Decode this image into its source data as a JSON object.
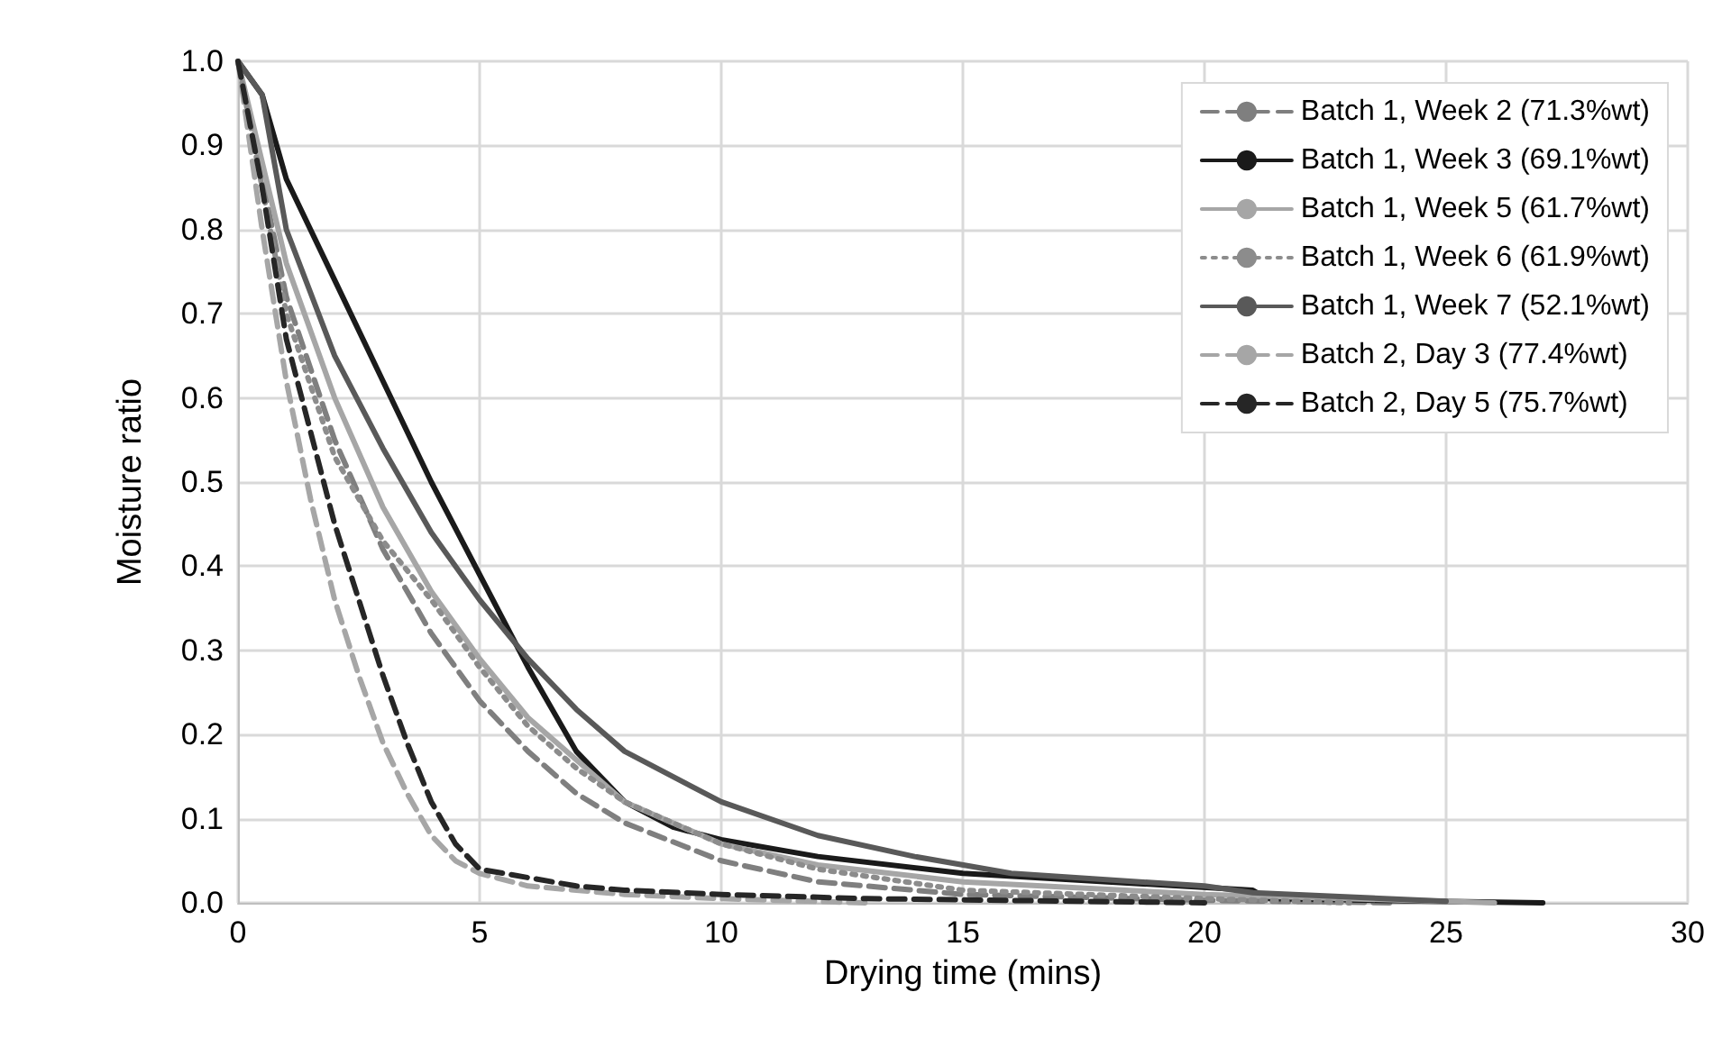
{
  "chart_data": {
    "type": "line",
    "xlabel": "Drying time (mins)",
    "ylabel": "Moisture ratio",
    "xlim": [
      0,
      30
    ],
    "xticks": [
      0,
      5,
      10,
      15,
      20,
      25,
      30
    ],
    "ylim": [
      0,
      1
    ],
    "yticks": [
      {
        "value": 0,
        "label": "0.0"
      },
      0.1,
      0.2,
      0.3,
      0.4,
      0.5,
      0.6,
      0.7,
      0.8,
      0.9,
      {
        "value": 1,
        "label": "1.0"
      }
    ],
    "grid": true,
    "legend": "top right",
    "marker": "none",
    "series": [
      {
        "name": "Batch 1, Week 2 (71.3%wt)",
        "color": "#7f7f7f",
        "line_style": "dashed",
        "x": [
          0,
          1,
          2,
          3,
          4,
          5,
          6,
          7,
          8,
          10,
          12,
          15,
          20,
          24
        ],
        "values": [
          1,
          0.72,
          0.55,
          0.42,
          0.32,
          0.24,
          0.18,
          0.13,
          0.095,
          0.05,
          0.025,
          0.01,
          0.003,
          0
        ]
      },
      {
        "name": "Batch 1, Week 3 (69.1%wt)",
        "color": "#1a1a1a",
        "line_style": "solid",
        "x": [
          0,
          0.5,
          1,
          2,
          3,
          4,
          5,
          6,
          7,
          8,
          9,
          10,
          12,
          15,
          18,
          21,
          21.3,
          27
        ],
        "values": [
          1,
          0.96,
          0.86,
          0.74,
          0.62,
          0.5,
          0.39,
          0.28,
          0.18,
          0.12,
          0.09,
          0.075,
          0.055,
          0.035,
          0.025,
          0.015,
          0.005,
          0
        ]
      },
      {
        "name": "Batch 1, Week 5 (61.7%wt)",
        "color": "#a6a6a6",
        "line_style": "solid",
        "x": [
          0,
          1,
          2,
          3,
          4,
          5,
          6,
          7,
          8,
          10,
          12,
          15,
          20,
          26
        ],
        "values": [
          1,
          0.76,
          0.6,
          0.47,
          0.37,
          0.29,
          0.22,
          0.17,
          0.12,
          0.07,
          0.045,
          0.025,
          0.01,
          0
        ]
      },
      {
        "name": "Batch 1, Week 6 (61.9%wt)",
        "color": "#8c8c8c",
        "line_style": "dotted",
        "x": [
          0,
          1,
          2,
          3,
          4,
          5,
          6,
          7,
          8,
          10,
          12,
          15,
          20,
          23
        ],
        "values": [
          1,
          0.7,
          0.53,
          0.43,
          0.36,
          0.28,
          0.21,
          0.16,
          0.12,
          0.07,
          0.04,
          0.015,
          0.005,
          0
        ]
      },
      {
        "name": "Batch 1, Week 7 (52.1%wt)",
        "color": "#595959",
        "line_style": "solid",
        "x": [
          0,
          0.5,
          1,
          2,
          3,
          4,
          5,
          6,
          7,
          8,
          10,
          12,
          14,
          16,
          20,
          21,
          25
        ],
        "values": [
          1,
          0.96,
          0.8,
          0.65,
          0.54,
          0.44,
          0.36,
          0.29,
          0.23,
          0.18,
          0.12,
          0.08,
          0.055,
          0.035,
          0.02,
          0.012,
          0.002
        ]
      },
      {
        "name": "Batch 2, Day 3 (77.4%wt)",
        "color": "#a6a6a6",
        "line_style": "dashed",
        "x": [
          0,
          0.5,
          1,
          1.5,
          2,
          2.5,
          3,
          3.5,
          4,
          4.5,
          5,
          6,
          7,
          8,
          10,
          13
        ],
        "values": [
          1,
          0.8,
          0.62,
          0.48,
          0.36,
          0.27,
          0.19,
          0.13,
          0.08,
          0.05,
          0.035,
          0.02,
          0.015,
          0.01,
          0.005,
          0
        ]
      },
      {
        "name": "Batch 2, Day 5 (75.7%wt)",
        "color": "#262626",
        "line_style": "dashed",
        "x": [
          0,
          0.5,
          1,
          1.5,
          2,
          2.5,
          3,
          3.5,
          4,
          4.5,
          5,
          6,
          7,
          8,
          10,
          13,
          20
        ],
        "values": [
          1,
          0.85,
          0.67,
          0.56,
          0.45,
          0.36,
          0.27,
          0.19,
          0.12,
          0.07,
          0.04,
          0.03,
          0.02,
          0.015,
          0.01,
          0.005,
          0
        ]
      }
    ]
  }
}
